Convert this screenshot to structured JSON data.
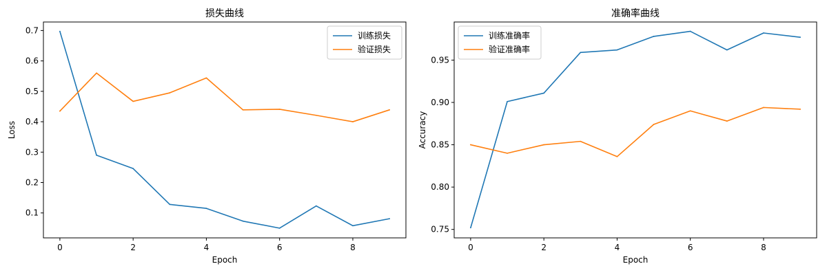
{
  "chart_data": [
    {
      "type": "line",
      "title": "损失曲线",
      "xlabel": "Epoch",
      "ylabel": "Loss",
      "x": [
        0,
        1,
        2,
        3,
        4,
        5,
        6,
        7,
        8,
        9
      ],
      "xlim": [
        -0.45,
        9.45
      ],
      "ylim": [
        0.018,
        0.728
      ],
      "xticks": [
        0,
        2,
        4,
        6,
        8
      ],
      "yticks": [
        0.1,
        0.2,
        0.3,
        0.4,
        0.5,
        0.6,
        0.7
      ],
      "tick_decimals": 1,
      "legend_position": "top-right",
      "grid": false,
      "series": [
        {
          "name": "训练损失",
          "color": "#1f77b4",
          "values": [
            0.697,
            0.29,
            0.246,
            0.128,
            0.115,
            0.073,
            0.05,
            0.123,
            0.058,
            0.081
          ]
        },
        {
          "name": "验证损失",
          "color": "#ff7f0e",
          "values": [
            0.435,
            0.56,
            0.467,
            0.495,
            0.544,
            0.439,
            0.441,
            0.421,
            0.4,
            0.439
          ]
        }
      ]
    },
    {
      "type": "line",
      "title": "准确率曲线",
      "xlabel": "Epoch",
      "ylabel": "Accuracy",
      "x": [
        0,
        1,
        2,
        3,
        4,
        5,
        6,
        7,
        8,
        9
      ],
      "xlim": [
        -0.45,
        9.45
      ],
      "ylim": [
        0.74,
        0.995
      ],
      "xticks": [
        0,
        2,
        4,
        6,
        8
      ],
      "yticks": [
        0.75,
        0.8,
        0.85,
        0.9,
        0.95
      ],
      "tick_decimals": 2,
      "legend_position": "top-left",
      "grid": false,
      "series": [
        {
          "name": "训练准确率",
          "color": "#1f77b4",
          "values": [
            0.752,
            0.901,
            0.911,
            0.959,
            0.962,
            0.978,
            0.984,
            0.962,
            0.982,
            0.977
          ]
        },
        {
          "name": "验证准确率",
          "color": "#ff7f0e",
          "values": [
            0.85,
            0.84,
            0.85,
            0.854,
            0.836,
            0.874,
            0.89,
            0.878,
            0.894,
            0.892
          ]
        }
      ]
    }
  ]
}
